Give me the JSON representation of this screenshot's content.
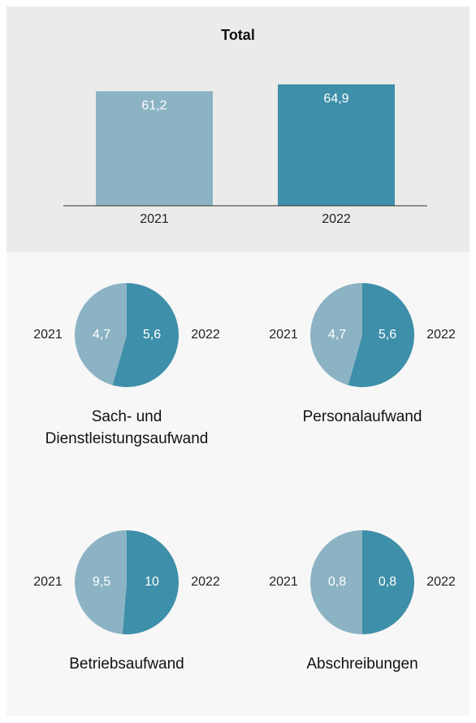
{
  "chart_data": [
    {
      "type": "bar",
      "title": "Total",
      "categories": [
        "2021",
        "2022"
      ],
      "values": [
        61.2,
        64.9
      ],
      "value_labels": [
        "61,2",
        "64,9"
      ],
      "colors": [
        "#8cb3c4",
        "#3e8fa9"
      ],
      "ylim": [
        0,
        70
      ]
    },
    {
      "type": "pie",
      "title": "Sach- und Dienstleistungsaufwand",
      "categories": [
        "2021",
        "2022"
      ],
      "values": [
        4.7,
        5.6
      ],
      "value_labels": [
        "4,7",
        "5,6"
      ],
      "colors": [
        "#8cb3c4",
        "#3e8fa9"
      ]
    },
    {
      "type": "pie",
      "title": "Personalaufwand",
      "categories": [
        "2021",
        "2022"
      ],
      "values": [
        4.7,
        5.6
      ],
      "value_labels": [
        "4,7",
        "5,6"
      ],
      "colors": [
        "#8cb3c4",
        "#3e8fa9"
      ]
    },
    {
      "type": "pie",
      "title": "Betriebsaufwand",
      "categories": [
        "2021",
        "2022"
      ],
      "values": [
        9.5,
        10
      ],
      "value_labels": [
        "9,5",
        "10"
      ],
      "colors": [
        "#8cb3c4",
        "#3e8fa9"
      ]
    },
    {
      "type": "pie",
      "title": "Abschreibungen",
      "categories": [
        "2021",
        "2022"
      ],
      "values": [
        0.8,
        0.8
      ],
      "value_labels": [
        "0,8",
        "0,8"
      ],
      "colors": [
        "#8cb3c4",
        "#3e8fa9"
      ]
    }
  ]
}
